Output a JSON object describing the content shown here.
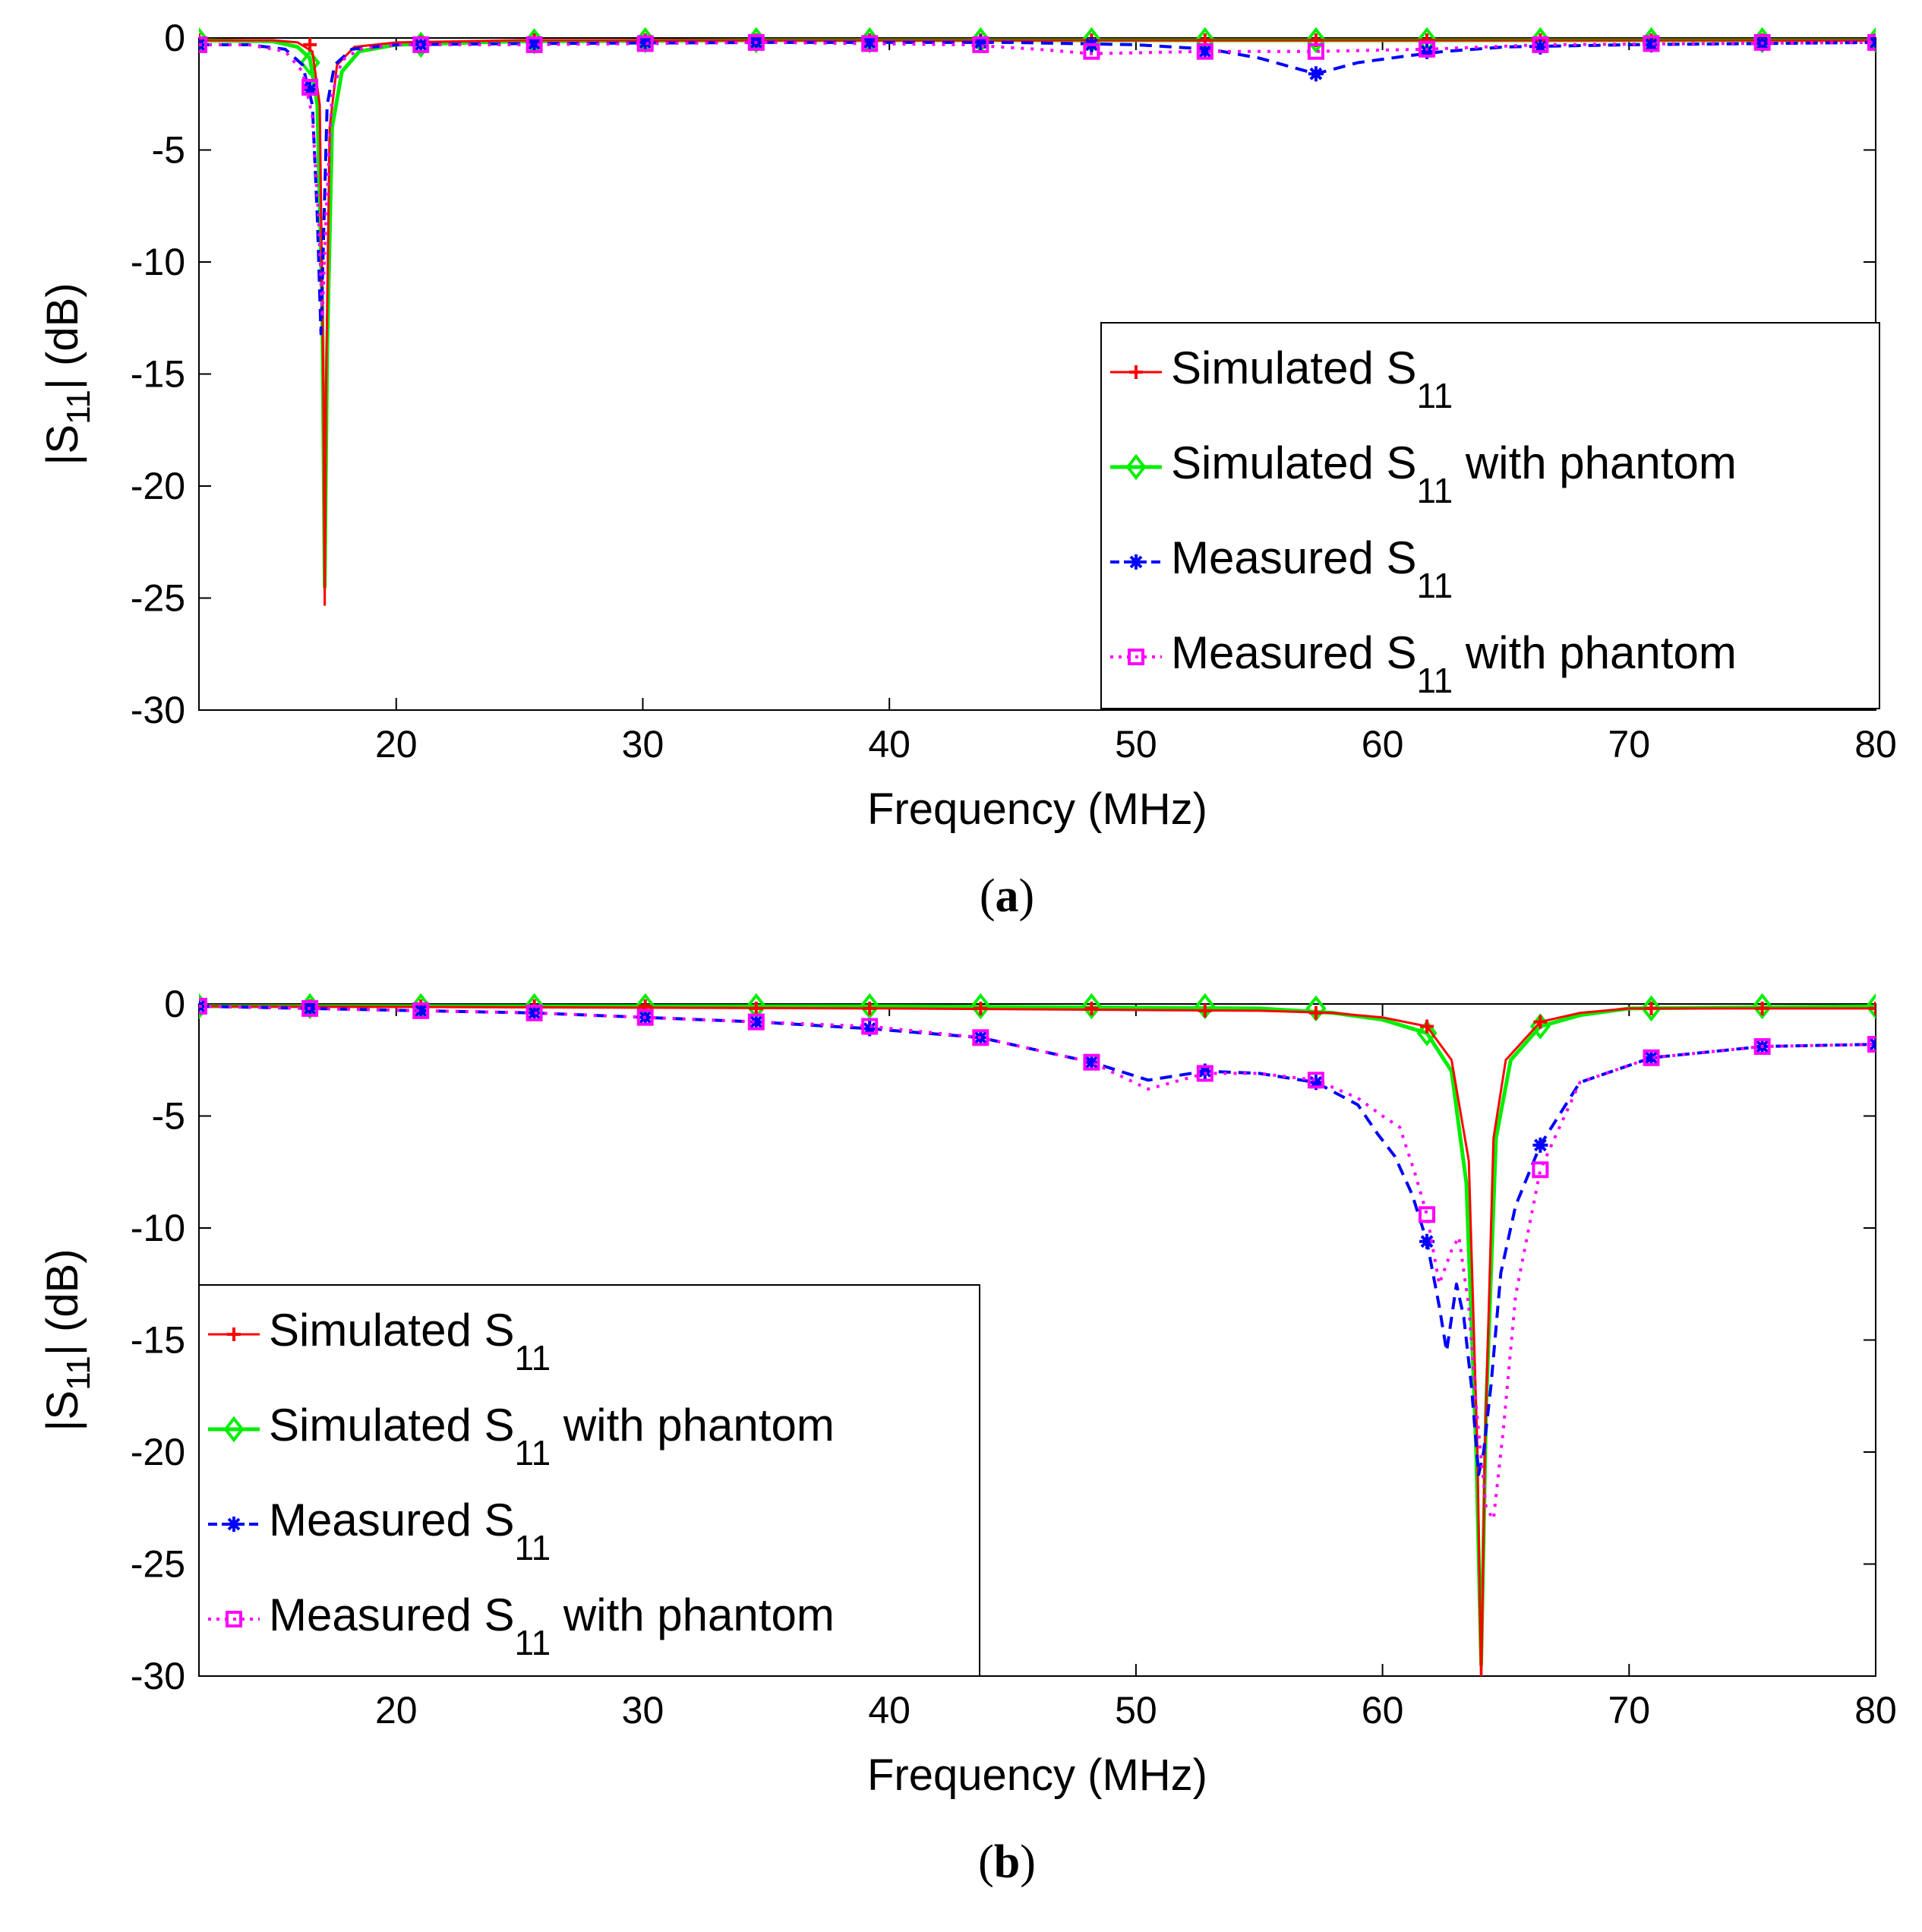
{
  "chart_data": [
    {
      "type": "line",
      "panel_label": "a",
      "xlabel": "Frequency (MHz)",
      "ylabel": "|S11| (dB)",
      "xlim": [
        12,
        80
      ],
      "ylim": [
        -30,
        0
      ],
      "xticks": [
        20,
        30,
        40,
        50,
        60,
        70,
        80
      ],
      "yticks": [
        0,
        -5,
        -10,
        -15,
        -20,
        -25,
        -30
      ],
      "legend_position": "right",
      "series": [
        {
          "name": "Simulated S11 with phantom",
          "legend_prefix": "Simulated S",
          "legend_sub": "11",
          "legend_suffix": " with phantom",
          "color": "#00ee00",
          "dash": "",
          "width": 5,
          "marker": "diamond",
          "x": [
            12,
            15,
            16,
            16.5,
            16.8,
            17.0,
            17.1,
            17.2,
            17.4,
            17.8,
            18.5,
            20,
            25,
            35,
            45,
            55,
            65,
            80
          ],
          "y": [
            -0.1,
            -0.15,
            -0.4,
            -0.9,
            -3,
            -12,
            -24.5,
            -14,
            -4,
            -1.5,
            -0.6,
            -0.3,
            -0.15,
            -0.1,
            -0.1,
            -0.1,
            -0.1,
            -0.1
          ],
          "marker_x": [
            12,
            16.5,
            21,
            25.6,
            30.1,
            34.6,
            39.2,
            43.7,
            48.2,
            52.8,
            57.3,
            61.8,
            66.4,
            70.9,
            75.4,
            80
          ],
          "marker_y": [
            -0.1,
            -1.1,
            -0.3,
            -0.15,
            -0.1,
            -0.1,
            -0.1,
            -0.1,
            -0.1,
            -0.1,
            -0.1,
            -0.1,
            -0.1,
            -0.1,
            -0.1,
            -0.1
          ]
        },
        {
          "name": "Simulated S11",
          "legend_prefix": "Simulated S",
          "legend_sub": "11",
          "legend_suffix": "",
          "color": "#ff0000",
          "dash": "",
          "width": 3,
          "marker": "plus",
          "x": [
            12,
            15,
            16,
            16.6,
            16.9,
            17.05,
            17.1,
            17.15,
            17.3,
            17.6,
            18.3,
            20,
            25,
            35,
            80
          ],
          "y": [
            -0.1,
            -0.1,
            -0.2,
            -0.6,
            -3,
            -16,
            -25.3,
            -16,
            -4,
            -1.2,
            -0.4,
            -0.2,
            -0.1,
            -0.1,
            -0.1
          ],
          "marker_x": [
            12,
            16.5,
            21,
            25.6,
            30.1,
            34.6,
            39.2,
            43.7,
            48.2,
            52.8,
            57.3,
            61.8,
            66.4,
            70.9,
            75.4,
            80
          ],
          "marker_y": [
            -0.1,
            -0.3,
            -0.2,
            -0.1,
            -0.1,
            -0.1,
            -0.1,
            -0.1,
            -0.1,
            -0.1,
            -0.1,
            -0.1,
            -0.1,
            -0.1,
            -0.1,
            -0.1
          ]
        },
        {
          "name": "Measured S11",
          "legend_prefix": "Measured S",
          "legend_sub": "11",
          "legend_suffix": "",
          "color": "#0000ff",
          "dash": "16 10",
          "width": 4,
          "marker": "asterisk",
          "x": [
            12,
            14,
            15.5,
            16.2,
            16.6,
            16.8,
            16.95,
            17.05,
            17.2,
            17.5,
            18.2,
            20,
            25,
            35,
            45,
            50,
            53,
            55,
            57.3,
            59,
            61,
            62.5,
            65,
            70,
            80
          ],
          "y": [
            -0.3,
            -0.3,
            -0.5,
            -1.2,
            -3,
            -8,
            -13.2,
            -9,
            -3,
            -1.2,
            -0.5,
            -0.3,
            -0.25,
            -0.2,
            -0.2,
            -0.3,
            -0.5,
            -0.9,
            -1.6,
            -1.1,
            -0.8,
            -0.6,
            -0.4,
            -0.3,
            -0.2
          ],
          "marker_x": [
            12,
            16.5,
            21,
            25.6,
            30.1,
            34.6,
            39.2,
            43.7,
            48.2,
            52.8,
            57.3,
            61.8,
            66.4,
            70.9,
            75.4,
            80
          ],
          "marker_y": [
            -0.3,
            -2.3,
            -0.3,
            -0.25,
            -0.2,
            -0.2,
            -0.2,
            -0.2,
            -0.3,
            -0.6,
            -1.6,
            -0.6,
            -0.4,
            -0.3,
            -0.25,
            -0.2
          ]
        },
        {
          "name": "Measured S11 with phantom",
          "legend_prefix": "Measured S",
          "legend_sub": "11",
          "legend_suffix": " with phantom",
          "color": "#ff00ff",
          "dash": "4 9",
          "width": 4,
          "marker": "square",
          "x": [
            12,
            14,
            15.5,
            16.2,
            16.6,
            16.85,
            17.0,
            17.15,
            17.4,
            17.8,
            18.5,
            20,
            25,
            35,
            43,
            46,
            48.2,
            52.8,
            57.3,
            61.8,
            66.4,
            80
          ],
          "y": [
            -0.3,
            -0.3,
            -0.6,
            -1.5,
            -3.5,
            -8,
            -12.5,
            -8,
            -2.5,
            -1,
            -0.5,
            -0.3,
            -0.3,
            -0.2,
            -0.3,
            -0.5,
            -0.7,
            -0.6,
            -0.6,
            -0.5,
            -0.3,
            -0.2
          ],
          "marker_x": [
            12,
            16.5,
            21,
            25.6,
            30.1,
            34.6,
            39.2,
            43.7,
            48.2,
            52.8,
            57.3,
            61.8,
            66.4,
            70.9,
            75.4,
            80
          ],
          "marker_y": [
            -0.3,
            -2.2,
            -0.3,
            -0.3,
            -0.25,
            -0.2,
            -0.25,
            -0.3,
            -0.6,
            -0.6,
            -0.6,
            -0.5,
            -0.3,
            -0.25,
            -0.2,
            -0.2
          ]
        }
      ]
    },
    {
      "type": "line",
      "panel_label": "b",
      "xlabel": "Frequency (MHz)",
      "ylabel": "|S11| (dB)",
      "xlim": [
        12,
        80
      ],
      "ylim": [
        -30,
        0
      ],
      "xticks": [
        20,
        30,
        40,
        50,
        60,
        70,
        80
      ],
      "yticks": [
        0,
        -5,
        -10,
        -15,
        -20,
        -25,
        -30
      ],
      "legend_position": "bottom-left",
      "series": [
        {
          "name": "Simulated S11 with phantom",
          "legend_prefix": "Simulated S",
          "legend_sub": "11",
          "legend_suffix": " with phantom",
          "color": "#00ee00",
          "dash": "",
          "width": 5,
          "marker": "diamond",
          "x": [
            12,
            40,
            55,
            58,
            60,
            61.8,
            62.8,
            63.4,
            63.8,
            64.0,
            64.2,
            64.6,
            65.2,
            66.4,
            68,
            70,
            80
          ],
          "y": [
            -0.1,
            -0.1,
            -0.2,
            -0.4,
            -0.7,
            -1.3,
            -3,
            -8,
            -20,
            -29.5,
            -18,
            -6,
            -2.5,
            -1.0,
            -0.5,
            -0.2,
            -0.1
          ],
          "marker_x": [
            12,
            16.5,
            21,
            25.6,
            30.1,
            34.6,
            39.2,
            43.7,
            48.2,
            52.8,
            57.3,
            61.8,
            66.4,
            70.9,
            75.4,
            80
          ],
          "marker_y": [
            -0.1,
            -0.1,
            -0.1,
            -0.1,
            -0.1,
            -0.1,
            -0.1,
            -0.1,
            -0.1,
            -0.1,
            -0.2,
            -1.3,
            -1.0,
            -0.2,
            -0.1,
            -0.1
          ]
        },
        {
          "name": "Simulated S11",
          "legend_prefix": "Simulated S",
          "legend_sub": "11",
          "legend_suffix": "",
          "color": "#ff0000",
          "dash": "",
          "width": 3,
          "marker": "plus",
          "x": [
            12,
            40,
            55,
            58,
            60,
            61.8,
            62.8,
            63.5,
            63.85,
            64.0,
            64.15,
            64.5,
            65.0,
            66.4,
            68,
            70,
            80
          ],
          "y": [
            -0.1,
            -0.2,
            -0.3,
            -0.4,
            -0.6,
            -1.0,
            -2.5,
            -7,
            -20,
            -30.5,
            -20,
            -6,
            -2.5,
            -0.8,
            -0.4,
            -0.2,
            -0.2
          ],
          "marker_x": [
            12,
            16.5,
            21,
            25.6,
            30.1,
            34.6,
            39.2,
            43.7,
            48.2,
            52.8,
            57.3,
            61.8,
            66.4,
            70.9,
            75.4,
            80
          ],
          "marker_y": [
            -0.1,
            -0.1,
            -0.1,
            -0.1,
            -0.1,
            -0.2,
            -0.2,
            -0.2,
            -0.2,
            -0.3,
            -0.4,
            -1.0,
            -0.8,
            -0.2,
            -0.2,
            -0.2
          ]
        },
        {
          "name": "Measured S11",
          "legend_prefix": "Measured S",
          "legend_sub": "11",
          "legend_suffix": "",
          "color": "#0000ff",
          "dash": "16 10",
          "width": 4,
          "marker": "asterisk",
          "x": [
            12,
            16.5,
            21,
            25.6,
            30.1,
            34.6,
            39.2,
            43.7,
            48.2,
            50.5,
            52.8,
            55,
            57.3,
            59,
            59.8,
            60.5,
            61.2,
            61.8,
            62.3,
            62.6,
            63.0,
            63.3,
            63.6,
            63.9,
            64.1,
            64.4,
            64.8,
            65.4,
            66.4,
            68,
            70.9,
            75.4,
            80
          ],
          "y": [
            -0.1,
            -0.2,
            -0.3,
            -0.4,
            -0.6,
            -0.8,
            -1.1,
            -1.5,
            -2.6,
            -3.4,
            -3.0,
            -3.1,
            -3.5,
            -4.5,
            -5.8,
            -6.8,
            -8.5,
            -10.6,
            -13.5,
            -15.5,
            -12.5,
            -14,
            -17,
            -21,
            -20,
            -17,
            -12,
            -9,
            -6.3,
            -3.5,
            -2.4,
            -1.9,
            -1.8
          ],
          "marker_x": [
            12,
            16.5,
            21,
            25.6,
            30.1,
            34.6,
            39.2,
            43.7,
            48.2,
            52.8,
            57.3,
            61.8,
            66.4,
            70.9,
            75.4,
            80
          ],
          "marker_y": [
            -0.1,
            -0.2,
            -0.3,
            -0.4,
            -0.6,
            -0.8,
            -1.1,
            -1.5,
            -2.6,
            -3.0,
            -3.5,
            -10.6,
            -6.3,
            -2.4,
            -1.9,
            -1.8
          ]
        },
        {
          "name": "Measured S11 with phantom",
          "legend_prefix": "Measured S",
          "legend_sub": "11",
          "legend_suffix": " with phantom",
          "color": "#ff00ff",
          "dash": "4 9",
          "width": 4,
          "marker": "square",
          "x": [
            12,
            16.5,
            21,
            25.6,
            30.1,
            34.6,
            39.2,
            43.7,
            48.2,
            50.5,
            52.8,
            55,
            57.3,
            59,
            60,
            60.7,
            61.3,
            61.8,
            62.3,
            62.8,
            63.1,
            63.5,
            63.8,
            64.2,
            64.5,
            64.9,
            65.4,
            66.4,
            68,
            70.9,
            75.4,
            80
          ],
          "y": [
            -0.1,
            -0.2,
            -0.3,
            -0.4,
            -0.6,
            -0.8,
            -1.0,
            -1.5,
            -2.6,
            -3.8,
            -3.1,
            -3.1,
            -3.4,
            -4.2,
            -5.0,
            -5.5,
            -7.5,
            -9.4,
            -12.5,
            -11.0,
            -10.4,
            -13.5,
            -18,
            -22.5,
            -23,
            -19,
            -13,
            -7.4,
            -3.5,
            -2.4,
            -1.9,
            -1.8
          ],
          "marker_x": [
            12,
            16.5,
            21,
            25.6,
            30.1,
            34.6,
            39.2,
            43.7,
            48.2,
            52.8,
            57.3,
            61.8,
            66.4,
            70.9,
            75.4,
            80
          ],
          "marker_y": [
            -0.1,
            -0.2,
            -0.3,
            -0.4,
            -0.6,
            -0.8,
            -1.0,
            -1.5,
            -2.6,
            -3.1,
            -3.4,
            -9.4,
            -7.4,
            -2.4,
            -1.9,
            -1.8
          ]
        }
      ]
    }
  ]
}
